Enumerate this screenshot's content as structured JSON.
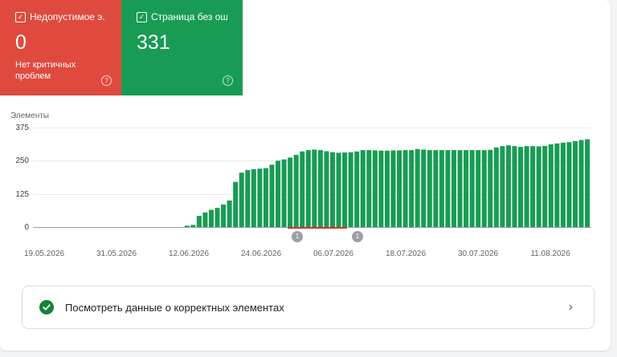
{
  "tiles": {
    "invalid": {
      "label": "Недопустимое э...",
      "value": "0",
      "sub_line1": "Нет критичных",
      "sub_line2": "проблем",
      "color": "#e04a3e"
    },
    "valid": {
      "label": "Страница без ош...",
      "value": "331",
      "color": "#189c54"
    }
  },
  "chart_data": {
    "type": "bar",
    "ylabel": "Элементы",
    "ylim": [
      0,
      375
    ],
    "yticks": [
      "375",
      "250",
      "125",
      "0"
    ],
    "xticks": [
      "19.05.2026",
      "31.05.2026",
      "12.06.2026",
      "24.06.2026",
      "06.07.2026",
      "18.07.2026",
      "30.07.2026",
      "11.08.2026"
    ],
    "start_date": "19.05.2026",
    "color": "#189c54",
    "values": [
      0,
      0,
      0,
      0,
      0,
      0,
      0,
      0,
      0,
      0,
      0,
      0,
      0,
      0,
      0,
      0,
      0,
      0,
      0,
      0,
      0,
      0,
      0,
      0,
      0,
      5,
      8,
      42,
      55,
      65,
      72,
      85,
      100,
      170,
      205,
      215,
      218,
      220,
      222,
      235,
      250,
      255,
      262,
      272,
      285,
      290,
      292,
      290,
      286,
      282,
      280,
      281,
      282,
      285,
      290,
      290,
      289,
      288,
      288,
      289,
      289,
      290,
      290,
      294,
      292,
      290,
      290,
      290,
      290,
      290,
      290,
      290,
      290,
      290,
      290,
      291,
      300,
      305,
      308,
      305,
      302,
      305,
      305,
      304,
      306,
      312,
      315,
      318,
      320,
      324,
      328,
      331
    ],
    "annotations": [
      {
        "label": "1"
      },
      {
        "label": "1"
      }
    ]
  },
  "link": {
    "label": "Посмотреть данные о корректных элементах"
  },
  "icons": {
    "check": "checkbox-check-icon",
    "help": "help-icon",
    "ok": "check-circle-icon",
    "chevron": "chevron-right-icon"
  }
}
